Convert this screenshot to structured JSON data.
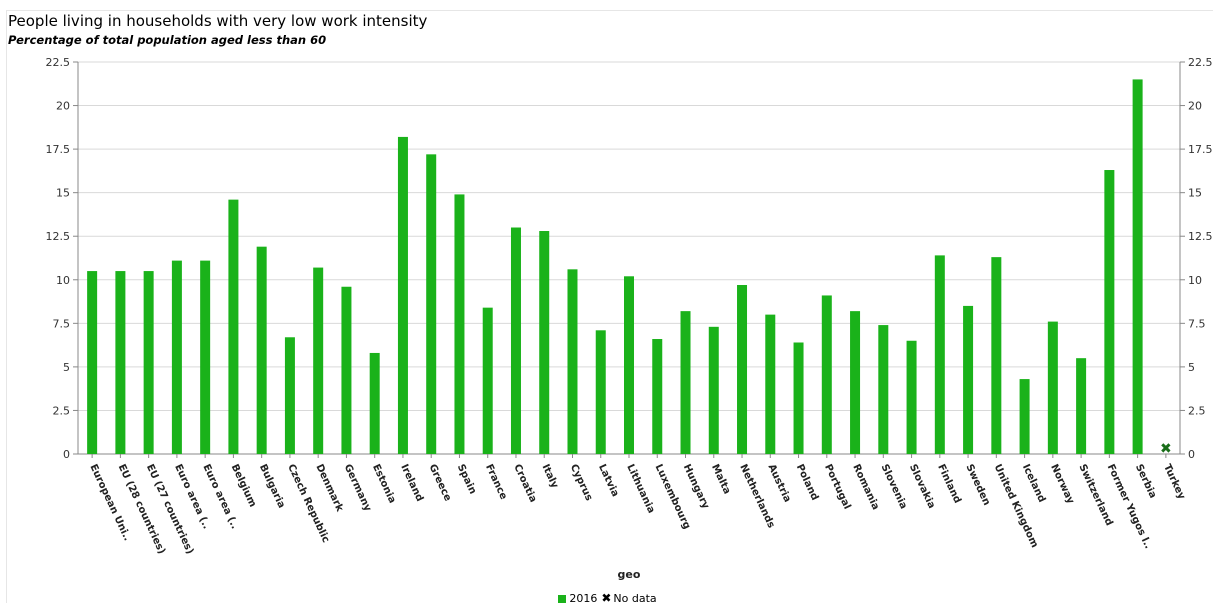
{
  "chart_data": {
    "type": "bar",
    "title": "People living in households with very low work intensity",
    "subtitle": "Percentage of total population aged less than 60",
    "xlabel": "geo",
    "ylabel": "",
    "ylim": [
      0,
      22.5
    ],
    "yticks": [
      "0",
      "2.5",
      "5",
      "7.5",
      "10",
      "12.5",
      "15",
      "17.5",
      "20",
      "22.5"
    ],
    "grid": true,
    "legend_position": "bottom",
    "bar_color": "#1ab21a",
    "nodata_marker_color": "#1a6e1a",
    "categories": [
      "European Uni..",
      "EU (28 countries)",
      "EU (27 countries)",
      "Euro area (..",
      "Euro area (..",
      "Belgium",
      "Bulgaria",
      "Czech Republic",
      "Denmark",
      "Germany",
      "Estonia",
      "Ireland",
      "Greece",
      "Spain",
      "France",
      "Croatia",
      "Italy",
      "Cyprus",
      "Latvia",
      "Lithuania",
      "Luxembourg",
      "Hungary",
      "Malta",
      "Netherlands",
      "Austria",
      "Poland",
      "Portugal",
      "Romania",
      "Slovenia",
      "Slovakia",
      "Finland",
      "Sweden",
      "United Kingdom",
      "Iceland",
      "Norway",
      "Switzerland",
      "Former Yugos l..",
      "Serbia",
      "Turkey"
    ],
    "series": [
      {
        "name": "2016",
        "values": [
          10.5,
          10.5,
          10.5,
          11.1,
          11.1,
          14.6,
          11.9,
          6.7,
          10.7,
          9.6,
          5.8,
          18.2,
          17.2,
          14.9,
          8.4,
          13.0,
          12.8,
          10.6,
          7.1,
          10.2,
          6.6,
          8.2,
          7.3,
          9.7,
          8.0,
          6.4,
          9.1,
          8.2,
          7.4,
          6.5,
          11.4,
          8.5,
          11.3,
          4.3,
          7.6,
          5.5,
          16.3,
          21.5,
          null
        ]
      }
    ],
    "legend": [
      {
        "label": "2016",
        "kind": "swatch"
      },
      {
        "label": "No data",
        "kind": "marker"
      }
    ]
  }
}
